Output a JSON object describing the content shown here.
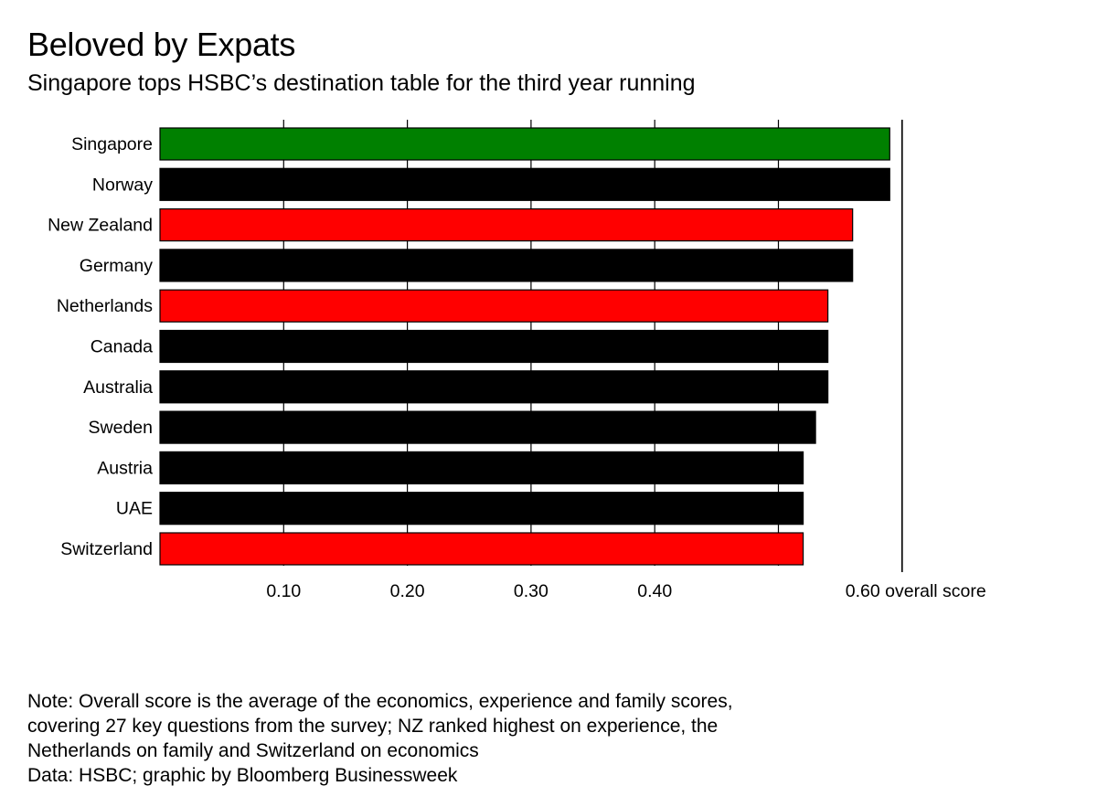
{
  "title": "Beloved by Expats",
  "subtitle": "Singapore tops HSBC’s destination table for the third year running",
  "chart_data": {
    "type": "bar",
    "orientation": "horizontal",
    "categories": [
      "Singapore",
      "Norway",
      "New Zealand",
      "Germany",
      "Netherlands",
      "Canada",
      "Australia",
      "Sweden",
      "Austria",
      "UAE",
      "Switzerland"
    ],
    "values": [
      0.59,
      0.59,
      0.56,
      0.56,
      0.54,
      0.54,
      0.54,
      0.53,
      0.52,
      0.52,
      0.52
    ],
    "bar_colors": [
      "#008000",
      "#000000",
      "#ff0000",
      "#000000",
      "#ff0000",
      "#000000",
      "#000000",
      "#000000",
      "#000000",
      "#000000",
      "#ff0000"
    ],
    "xlim": [
      0,
      0.6
    ],
    "xticks": [
      0.1,
      0.2,
      0.3,
      0.4,
      0.5,
      0.6
    ],
    "xtick_labels": [
      "0.10",
      "0.20",
      "0.30",
      "0.40",
      "",
      "0.60 overall score"
    ],
    "grid": true
  },
  "note": {
    "lines": [
      "Note: Overall score is the average of the economics, experience and family scores,",
      "covering 27 key questions from the survey; NZ ranked highest on experience, the",
      "Netherlands on family and Switzerland on economics",
      "Data: HSBC; graphic by Bloomberg Businessweek"
    ]
  }
}
